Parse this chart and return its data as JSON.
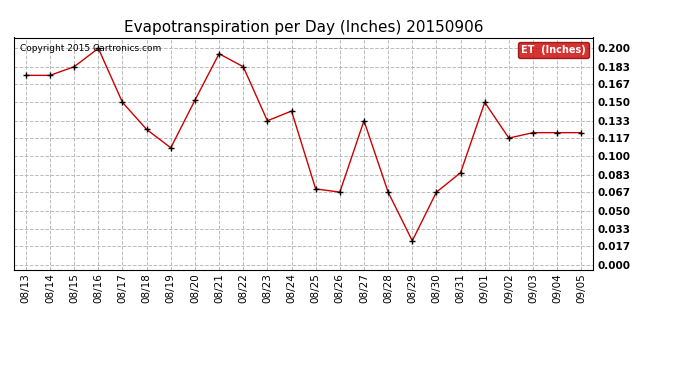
{
  "title": "Evapotranspiration per Day (Inches) 20150906",
  "copyright_text": "Copyright 2015 Cartronics.com",
  "legend_label": "ET  (Inches)",
  "legend_bg": "#cc0000",
  "legend_text_color": "#ffffff",
  "x_labels": [
    "08/13",
    "08/14",
    "08/15",
    "08/16",
    "08/17",
    "08/18",
    "08/19",
    "08/20",
    "08/21",
    "08/22",
    "08/23",
    "08/24",
    "08/25",
    "08/26",
    "08/27",
    "08/28",
    "08/29",
    "08/30",
    "08/31",
    "09/01",
    "09/02",
    "09/03",
    "09/04",
    "09/05"
  ],
  "y_values": [
    0.175,
    0.175,
    0.183,
    0.2,
    0.15,
    0.125,
    0.108,
    0.152,
    0.195,
    0.183,
    0.133,
    0.142,
    0.07,
    0.067,
    0.133,
    0.067,
    0.022,
    0.067,
    0.085,
    0.15,
    0.117,
    0.122,
    0.122,
    0.122
  ],
  "y_ticks": [
    0.0,
    0.017,
    0.033,
    0.05,
    0.067,
    0.083,
    0.1,
    0.117,
    0.133,
    0.15,
    0.167,
    0.183,
    0.2
  ],
  "line_color": "#cc0000",
  "marker_color": "#000000",
  "bg_color": "#ffffff",
  "grid_color": "#bbbbbb",
  "title_fontsize": 11,
  "tick_fontsize": 7.5,
  "copyright_fontsize": 6.5
}
